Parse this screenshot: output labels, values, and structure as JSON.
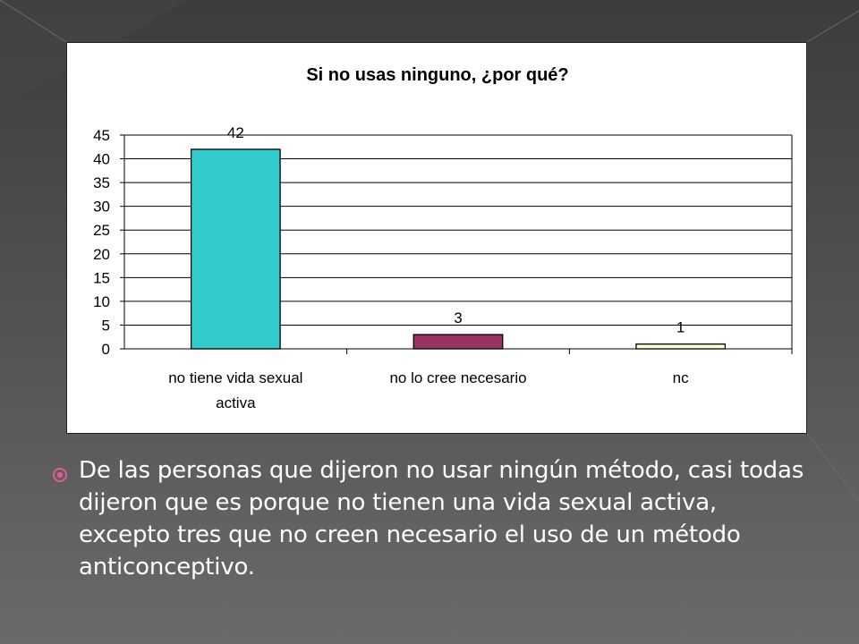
{
  "colors": {
    "bullet": "#e05a9a",
    "bar_fills": [
      "#33cccc",
      "#993366",
      "#ffffcc"
    ]
  },
  "chart_data": {
    "type": "bar",
    "title": "Si no usas ninguno, ¿por qué?",
    "categories": [
      "no tiene vida sexual activa",
      "no lo cree necesario",
      "nc"
    ],
    "category_lines": [
      [
        "no tiene vida sexual",
        "activa"
      ],
      [
        "no lo cree necesario"
      ],
      [
        "nc"
      ]
    ],
    "values": [
      42,
      3,
      1
    ],
    "data_labels": [
      "42",
      "3",
      "1"
    ],
    "ylim": [
      0,
      45
    ],
    "y_ticks": [
      "0",
      "5",
      "10",
      "15",
      "20",
      "25",
      "30",
      "35",
      "40",
      "45"
    ],
    "grid": true,
    "legend": "none"
  },
  "body": {
    "bullet_icon": "target-bullet-icon",
    "text": "De las personas que dijeron no usar ningún método, casi todas dijeron que es porque no tienen una vida sexual activa, excepto tres que no creen necesario el uso de un método anticonceptivo."
  }
}
